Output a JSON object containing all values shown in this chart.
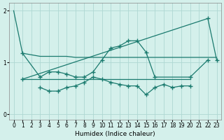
{
  "xlabel": "Humidex (Indice chaleur)",
  "bg_color": "#d4f0eb",
  "grid_color": "#aed8d3",
  "line_color": "#1a7a6e",
  "xlim": [
    -0.5,
    23.5
  ],
  "ylim": [
    -0.1,
    2.15
  ],
  "yticks": [
    0,
    1,
    2
  ],
  "xticks": [
    0,
    1,
    2,
    3,
    4,
    5,
    6,
    7,
    8,
    9,
    10,
    11,
    12,
    13,
    14,
    15,
    16,
    17,
    18,
    19,
    20,
    21,
    22,
    23
  ],
  "series": [
    {
      "x": [
        0,
        1,
        2,
        3,
        4,
        5,
        6,
        7,
        8,
        9,
        10,
        11,
        12,
        13,
        14,
        15,
        16,
        17,
        18,
        19,
        20,
        21,
        22,
        23
      ],
      "y": [
        2.0,
        1.18,
        1.15,
        1.12,
        1.12,
        1.12,
        1.12,
        1.1,
        1.1,
        1.1,
        1.1,
        1.1,
        1.1,
        1.1,
        1.1,
        1.1,
        1.1,
        1.1,
        1.1,
        1.1,
        1.1,
        1.1,
        1.1,
        1.1
      ],
      "marker": false
    },
    {
      "x": [
        1,
        22,
        23
      ],
      "y": [
        0.68,
        1.85,
        1.05
      ],
      "marker": true
    },
    {
      "x": [
        1,
        3,
        4,
        5,
        6,
        7,
        8,
        9,
        10,
        11,
        12,
        13,
        14,
        15,
        16,
        20,
        22
      ],
      "y": [
        1.18,
        0.72,
        0.82,
        0.82,
        0.78,
        0.72,
        0.72,
        0.82,
        1.05,
        1.28,
        1.32,
        1.42,
        1.42,
        1.2,
        0.72,
        0.72,
        1.05
      ],
      "marker": true
    },
    {
      "x": [
        3,
        4,
        5,
        6,
        7,
        8,
        9,
        10,
        11,
        12,
        13,
        14,
        15,
        16,
        17,
        18,
        19,
        20
      ],
      "y": [
        0.52,
        0.45,
        0.45,
        0.52,
        0.55,
        0.62,
        0.72,
        0.68,
        0.62,
        0.58,
        0.55,
        0.55,
        0.38,
        0.52,
        0.58,
        0.52,
        0.55,
        0.55
      ],
      "marker": true
    },
    {
      "x": [
        1,
        3,
        4,
        5,
        6,
        7,
        8,
        9,
        10,
        11,
        12,
        13,
        14,
        15,
        16,
        17,
        18,
        19,
        20
      ],
      "y": [
        0.68,
        0.68,
        0.68,
        0.68,
        0.68,
        0.68,
        0.68,
        0.68,
        0.68,
        0.68,
        0.68,
        0.68,
        0.68,
        0.68,
        0.68,
        0.68,
        0.68,
        0.68,
        0.68
      ],
      "marker": false
    }
  ]
}
